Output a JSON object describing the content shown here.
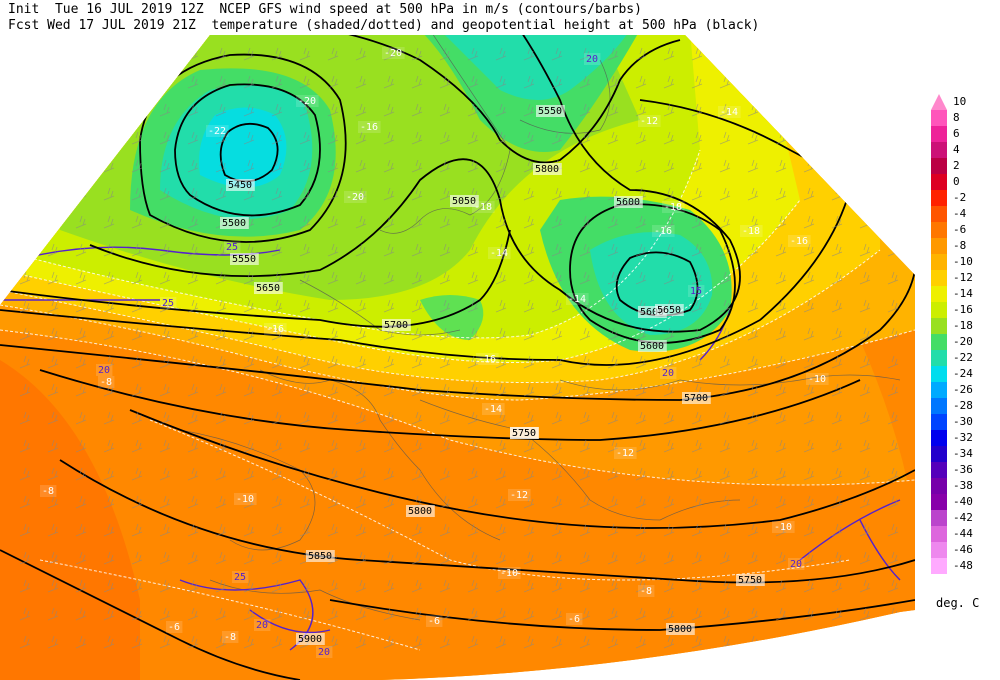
{
  "header": {
    "line1": "Init  Tue 16 JUL 2019 12Z  NCEP GFS wind speed at 500 hPa in m/s (contours/barbs)",
    "line2": "Fcst Wed 17 JUL 2019 21Z  temperature (shaded/dotted) and geopotential height at 500 hPa (black)"
  },
  "legend": {
    "unit": "deg. C",
    "items": [
      {
        "label": "10",
        "color": "#ff88cc"
      },
      {
        "label": "8",
        "color": "#ff55bb"
      },
      {
        "label": "6",
        "color": "#ee2299"
      },
      {
        "label": "4",
        "color": "#cc1177"
      },
      {
        "label": "2",
        "color": "#bb0044"
      },
      {
        "label": "0",
        "color": "#dd0022"
      },
      {
        "label": "-2",
        "color": "#ff2200"
      },
      {
        "label": "-4",
        "color": "#ff5500"
      },
      {
        "label": "-6",
        "color": "#ff7700"
      },
      {
        "label": "-8",
        "color": "#ff9900"
      },
      {
        "label": "-10",
        "color": "#ffb300"
      },
      {
        "label": "-12",
        "color": "#ffd000"
      },
      {
        "label": "-14",
        "color": "#eef000"
      },
      {
        "label": "-16",
        "color": "#ccee00"
      },
      {
        "label": "-18",
        "color": "#99e020"
      },
      {
        "label": "-20",
        "color": "#44dd66"
      },
      {
        "label": "-22",
        "color": "#22ddaa"
      },
      {
        "label": "-24",
        "color": "#00ddee"
      },
      {
        "label": "-26",
        "color": "#00aaff"
      },
      {
        "label": "-28",
        "color": "#0077ff"
      },
      {
        "label": "-30",
        "color": "#0044ff"
      },
      {
        "label": "-32",
        "color": "#0000ee"
      },
      {
        "label": "-34",
        "color": "#2200cc"
      },
      {
        "label": "-36",
        "color": "#5500bb"
      },
      {
        "label": "-38",
        "color": "#7700aa"
      },
      {
        "label": "-40",
        "color": "#8800aa"
      },
      {
        "label": "-42",
        "color": "#bb44cc"
      },
      {
        "label": "-44",
        "color": "#dd66dd"
      },
      {
        "label": "-46",
        "color": "#ee88ee"
      },
      {
        "label": "-48",
        "color": "#ffaaff"
      }
    ]
  },
  "map": {
    "height_labels": [
      "5450",
      "5500",
      "5550",
      "5600",
      "5650",
      "5700",
      "5750",
      "5800",
      "5850",
      "5900",
      "5050",
      "5550",
      "5800",
      "5600",
      "5650",
      "5600",
      "5700",
      "5750",
      "5750",
      "5800"
    ],
    "temp_labels": [
      "-20",
      "-20",
      "-22",
      "-18",
      "-16",
      "-18",
      "-16",
      "-14",
      "-14",
      "-16",
      "-16",
      "-14",
      "-12",
      "-12",
      "-10",
      "-10",
      "-8",
      "-8",
      "-6",
      "-8",
      "-6",
      "-6",
      "-20",
      "-18",
      "-16",
      "-14",
      "-12",
      "-10",
      "-10",
      "-8"
    ],
    "wind_labels": [
      "20",
      "25",
      "25",
      "20",
      "25",
      "20",
      "20",
      "20",
      "20",
      "15"
    ]
  }
}
